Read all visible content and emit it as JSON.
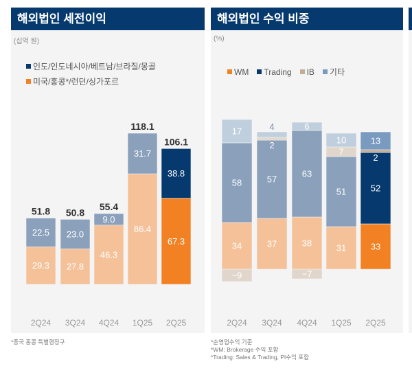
{
  "left": {
    "title": "해외법인 세전이익",
    "unit": "(십억 원)",
    "footnote": "*중국 홍콩 특별행정구"
  },
  "right": {
    "title": "해외법인 수익 비중",
    "unit": "(%)",
    "footnotes": [
      "*순영업수익 기준",
      "*WM: Brokerage 수익 포함",
      "*Trading: Sales & Trading, PI수익 포함"
    ]
  },
  "chart_data": [
    {
      "type": "bar",
      "stacked": true,
      "title": "해외법인 세전이익",
      "ylabel": "(십억 원)",
      "categories": [
        "2Q24",
        "3Q24",
        "4Q24",
        "1Q25",
        "2Q25"
      ],
      "series": [
        {
          "name": "미국/홍콩*/런던/싱가포르",
          "values": [
            29.3,
            27.8,
            46.3,
            86.4,
            67.3
          ],
          "color": "#f5c199",
          "highlight_color": "#f28123"
        },
        {
          "name": "인도/인도네시아/베트남/브라질/몽골",
          "values": [
            22.5,
            23.0,
            9.0,
            31.7,
            38.8
          ],
          "color": "#8aa0bb",
          "highlight_color": "#063a6f"
        }
      ],
      "totals": [
        "51.8",
        "50.8",
        "55.4",
        "118.1",
        "106.1"
      ],
      "highlight_category": "2Q25",
      "legend": "top-left"
    },
    {
      "type": "bar",
      "stacked": true,
      "title": "해외법인 수익 비중",
      "ylabel": "(%)",
      "categories": [
        "2Q24",
        "3Q24",
        "4Q24",
        "1Q25",
        "2Q25"
      ],
      "series": [
        {
          "name": "WM",
          "values": [
            34,
            37,
            38,
            31,
            33
          ],
          "color": "#f5c199",
          "highlight_color": "#f28123",
          "legend_color": "#f28123"
        },
        {
          "name": "Trading",
          "values": [
            58,
            57,
            63,
            51,
            52
          ],
          "color": "#8aa0bb",
          "highlight_color": "#063a6f",
          "legend_color": "#063a6f"
        },
        {
          "name": "IB",
          "values": [
            -9,
            2,
            -7,
            7,
            2
          ],
          "color": "#e0d6cc",
          "highlight_color": "#c4ad95",
          "legend_color": "#c4ad95"
        },
        {
          "name": "기타",
          "values": [
            17,
            4,
            6,
            10,
            13
          ],
          "color": "#c0cfde",
          "highlight_color": "#7a9bc0",
          "legend_color": "#7a9bc0"
        }
      ],
      "highlight_category": "2Q25",
      "legend": "top-left"
    }
  ]
}
